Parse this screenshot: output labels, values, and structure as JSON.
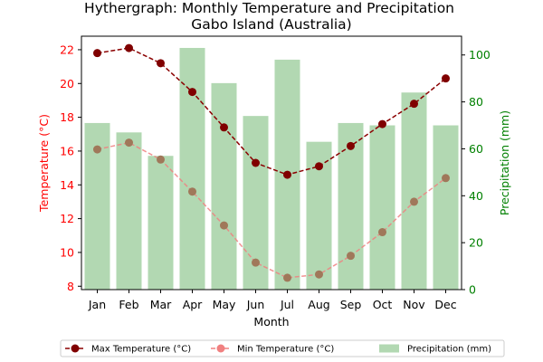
{
  "chart_data": {
    "type": "bar+line",
    "title": "Hythergraph: Monthly Temperature and Precipitation\nGabo Island (Australia)",
    "xlabel": "Month",
    "ylabel_left": "Temperature (°C)",
    "ylabel_right": "Precipitation (mm)",
    "categories": [
      "Jan",
      "Feb",
      "Mar",
      "Apr",
      "May",
      "Jun",
      "Jul",
      "Aug",
      "Sep",
      "Oct",
      "Nov",
      "Dec"
    ],
    "ylim_left": [
      7.8,
      22.8
    ],
    "yticks_left": [
      8,
      10,
      12,
      14,
      16,
      18,
      20,
      22
    ],
    "ylim_right": [
      0,
      108
    ],
    "yticks_right": [
      0,
      20,
      40,
      60,
      80,
      100
    ],
    "series": [
      {
        "name": "Max Temperature (°C)",
        "type": "line",
        "axis": "left",
        "color": "#8b0000",
        "style": "dashed",
        "values": [
          21.8,
          22.1,
          21.2,
          19.5,
          17.4,
          15.3,
          14.6,
          15.1,
          16.3,
          17.6,
          18.8,
          20.3
        ]
      },
      {
        "name": "Min Temperature (°C)",
        "type": "line",
        "axis": "left",
        "color": "#f08080",
        "style": "dashed",
        "values": [
          16.1,
          16.5,
          15.5,
          13.6,
          11.6,
          9.4,
          8.5,
          8.7,
          9.8,
          11.2,
          13.0,
          14.4
        ]
      },
      {
        "name": "Precipitation (mm)",
        "type": "bar",
        "axis": "right",
        "color": "#b2d8b2",
        "values": [
          71,
          67,
          57,
          103,
          88,
          74,
          98,
          63,
          71,
          70,
          84,
          70
        ]
      }
    ],
    "left_axis_color": "#ff0000",
    "right_axis_color": "#008000",
    "grid": false,
    "legend_position": "bottom-center"
  }
}
